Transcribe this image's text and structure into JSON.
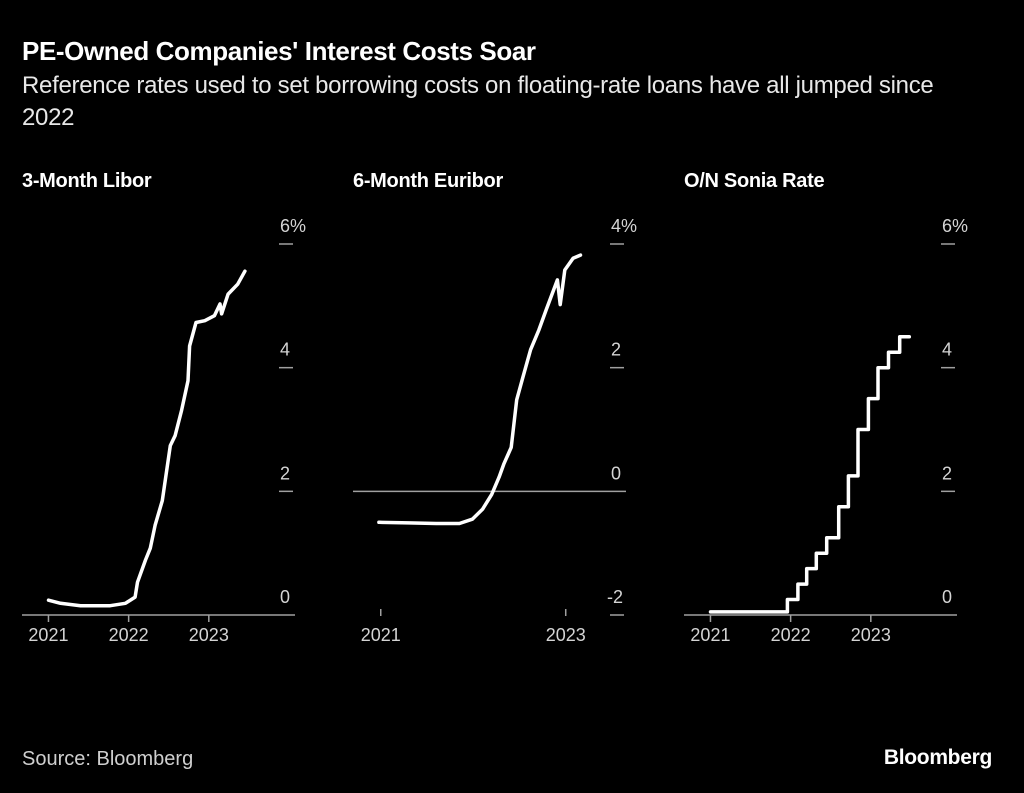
{
  "header": {
    "title": "PE-Owned Companies' Interest Costs Soar",
    "subtitle": "Reference rates used to set borrowing costs on floating-rate loans have all jumped since 2022"
  },
  "footer": {
    "source": "Source: Bloomberg",
    "brand": "Bloomberg"
  },
  "colors": {
    "background": "#000000",
    "line": "#ffffff",
    "axis": "#a0a0a0",
    "tick_label": "#d4d4d4"
  },
  "chart_data": [
    {
      "type": "line",
      "title": "3-Month Libor",
      "xlabel": "",
      "ylabel": "",
      "x_ticks": [
        2021,
        2022,
        2023
      ],
      "x_tick_labels": [
        "2021",
        "2022",
        "2023"
      ],
      "xlim": [
        2020.67,
        2024.05
      ],
      "y_ticks": [
        0,
        2,
        4,
        6
      ],
      "y_tick_labels": [
        "0",
        "2",
        "4",
        "6%"
      ],
      "ylim": [
        0,
        6
      ],
      "grid": false,
      "baseline": 0,
      "series": [
        {
          "name": "3-Month Libor",
          "x": [
            2021.0,
            2021.15,
            2021.4,
            2021.77,
            2021.96,
            2022.08,
            2022.11,
            2022.21,
            2022.27,
            2022.33,
            2022.42,
            2022.52,
            2022.58,
            2022.66,
            2022.74,
            2022.76,
            2022.84,
            2022.95,
            2023.07,
            2023.14,
            2023.16,
            2023.24,
            2023.36,
            2023.45
          ],
          "y": [
            0.24,
            0.19,
            0.15,
            0.15,
            0.19,
            0.29,
            0.53,
            0.89,
            1.08,
            1.45,
            1.85,
            2.74,
            2.9,
            3.31,
            3.79,
            4.35,
            4.73,
            4.76,
            4.84,
            5.03,
            4.87,
            5.19,
            5.35,
            5.56
          ]
        }
      ]
    },
    {
      "type": "line",
      "title": "6-Month Euribor",
      "xlabel": "",
      "ylabel": "",
      "x_ticks": [
        2021,
        2023
      ],
      "x_tick_labels": [
        "2021",
        "2023"
      ],
      "xlim": [
        2020.7,
        2023.63
      ],
      "y_ticks": [
        -2,
        0,
        2,
        4
      ],
      "y_tick_labels": [
        "-2",
        "0",
        "2",
        "4%"
      ],
      "ylim": [
        -2,
        4
      ],
      "grid": false,
      "baseline": 0,
      "series": [
        {
          "name": "6-Month Euribor",
          "x": [
            2020.98,
            2021.3,
            2021.6,
            2021.85,
            2021.99,
            2022.1,
            2022.2,
            2022.28,
            2022.33,
            2022.41,
            2022.47,
            2022.53,
            2022.62,
            2022.71,
            2022.79,
            2022.91,
            2022.94,
            2022.99,
            2023.08,
            2023.16
          ],
          "y": [
            -0.5,
            -0.51,
            -0.52,
            -0.52,
            -0.45,
            -0.29,
            -0.05,
            0.23,
            0.44,
            0.71,
            1.48,
            1.81,
            2.29,
            2.61,
            2.94,
            3.42,
            3.02,
            3.58,
            3.77,
            3.82
          ]
        }
      ]
    },
    {
      "type": "line",
      "step": true,
      "title": "O/N Sonia Rate",
      "xlabel": "",
      "ylabel": "",
      "x_ticks": [
        2021,
        2022,
        2023
      ],
      "x_tick_labels": [
        "2021",
        "2022",
        "2023"
      ],
      "xlim": [
        2020.67,
        2024.05
      ],
      "y_ticks": [
        0,
        2,
        4,
        6
      ],
      "y_tick_labels": [
        "0",
        "2",
        "4",
        "6%"
      ],
      "ylim": [
        0,
        6
      ],
      "grid": false,
      "baseline": 0,
      "series": [
        {
          "name": "O/N Sonia Rate",
          "x": [
            2021.0,
            2021.96,
            2022.09,
            2022.2,
            2022.32,
            2022.45,
            2022.6,
            2022.72,
            2022.84,
            2022.97,
            2023.09,
            2023.22,
            2023.36,
            2023.48
          ],
          "y": [
            0.05,
            0.25,
            0.5,
            0.75,
            1.0,
            1.25,
            1.75,
            2.25,
            3.0,
            3.5,
            4.0,
            4.25,
            4.5,
            4.5
          ]
        }
      ]
    }
  ]
}
